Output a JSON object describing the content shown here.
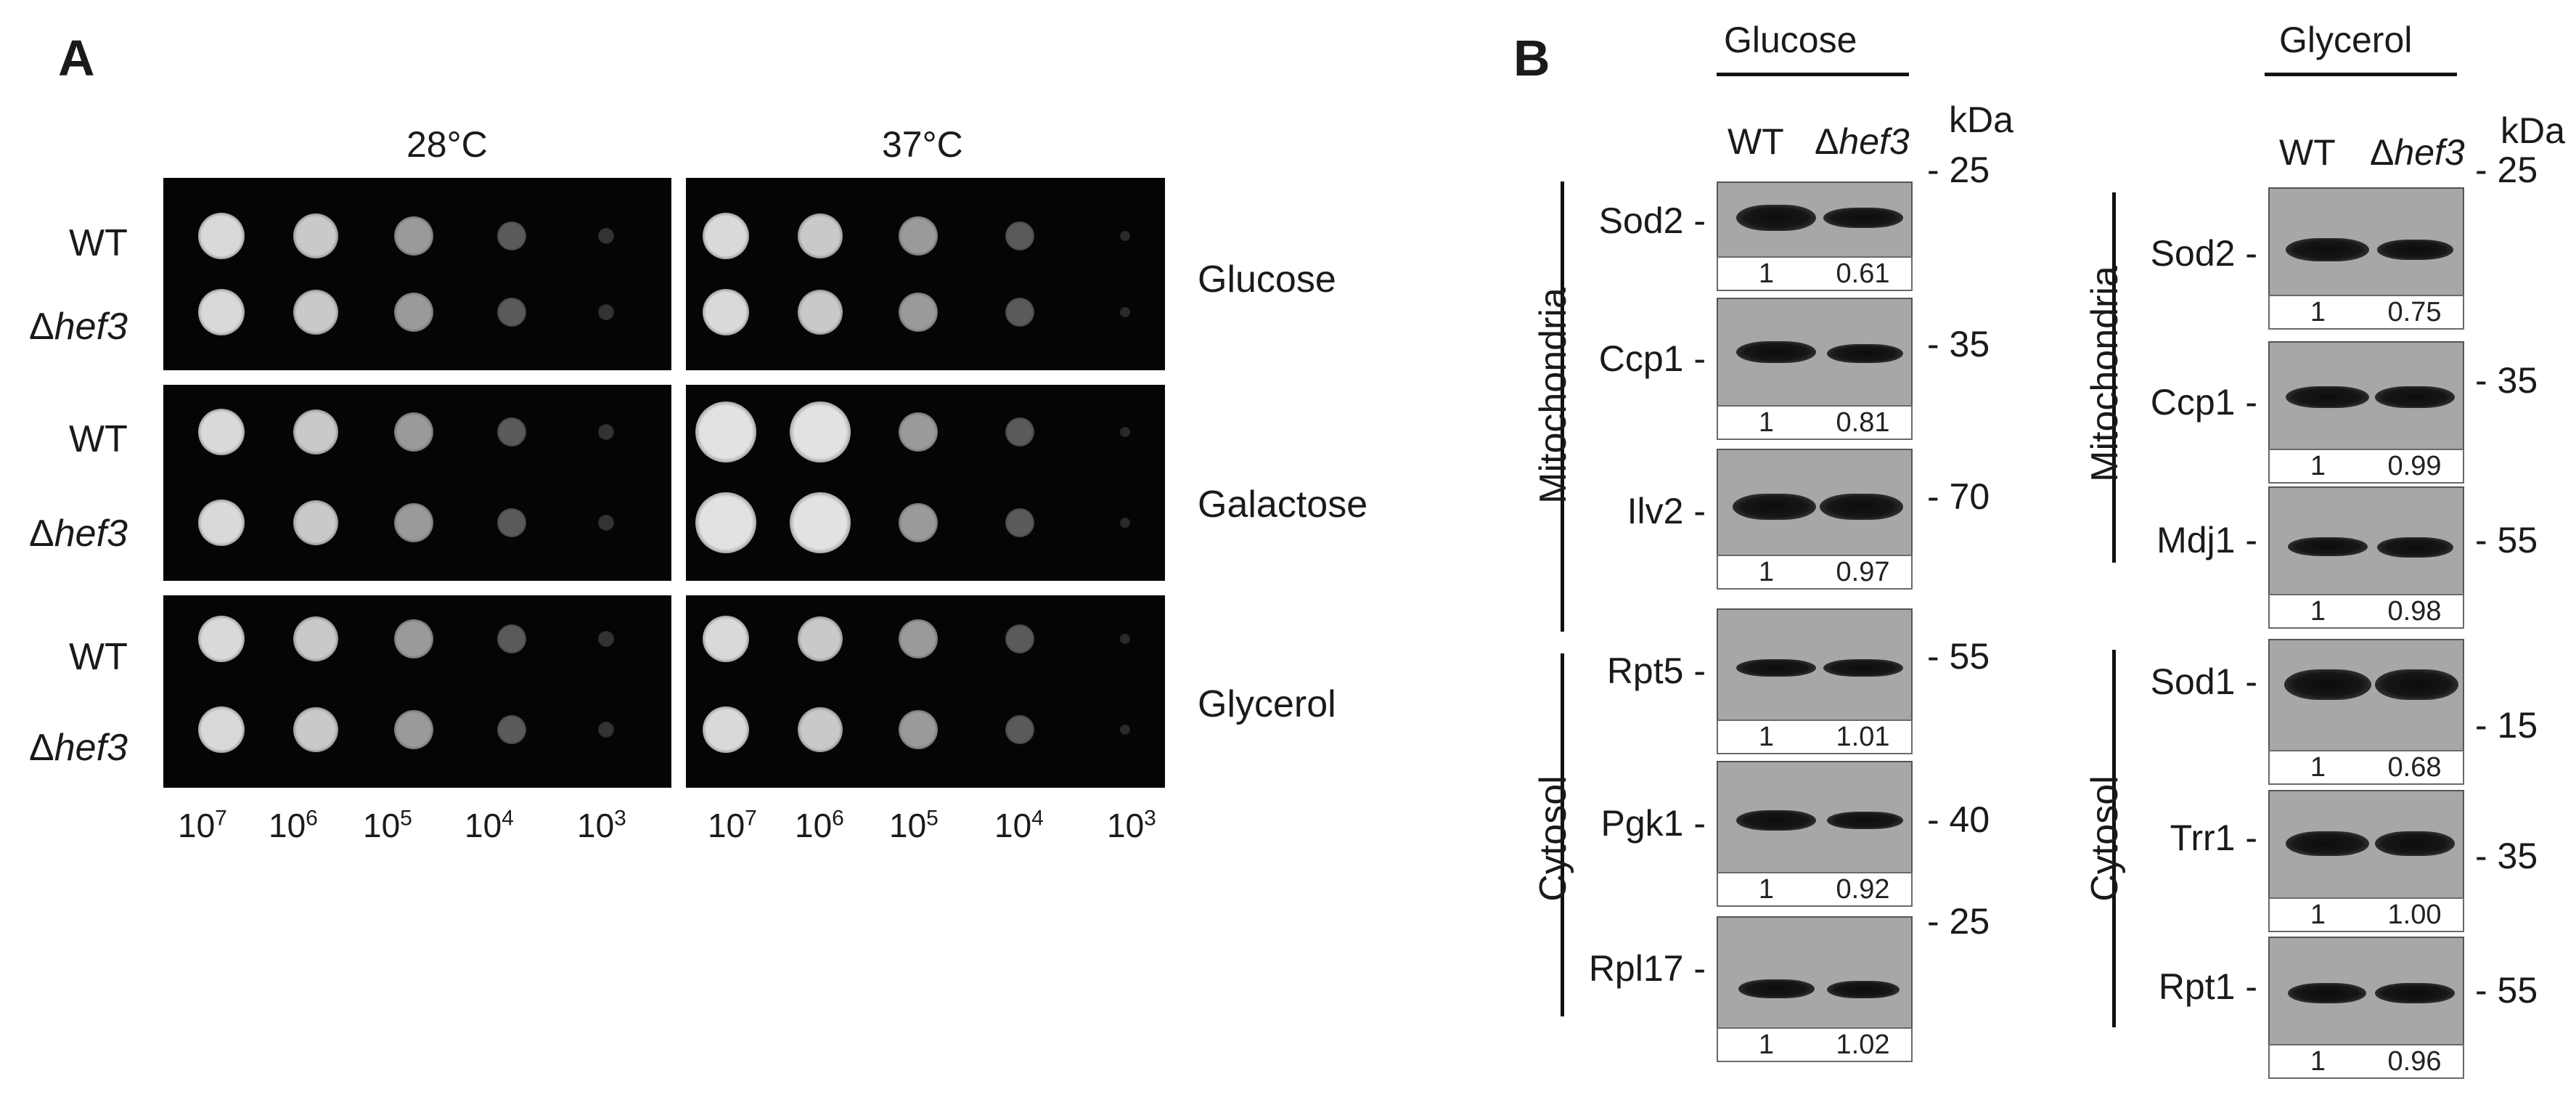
{
  "panel_a": {
    "letter": "A",
    "temperatures": [
      "28°C",
      "37°C"
    ],
    "media": [
      "Glucose",
      "Galactose",
      "Glycerol"
    ],
    "strain_wt": "WT",
    "strain_delta": "Δ",
    "strain_mut": "hef3",
    "dilutions": [
      {
        "base": "10",
        "exp": "7"
      },
      {
        "base": "10",
        "exp": "6"
      },
      {
        "base": "10",
        "exp": "5"
      },
      {
        "base": "10",
        "exp": "4"
      },
      {
        "base": "10",
        "exp": "3"
      }
    ]
  },
  "panel_b": {
    "letter": "B",
    "conditions": [
      "Glucose",
      "Glycerol"
    ],
    "col_wt": "WT",
    "col_delta": "Δ",
    "col_mut": "hef3",
    "kda_label": "kDa",
    "groups": [
      "Mitochondria",
      "Cytosol"
    ],
    "glucose_blots": [
      {
        "protein": "Sod2",
        "wt": "1",
        "mut": "0.61"
      },
      {
        "protein": "Ccp1",
        "wt": "1",
        "mut": "0.81"
      },
      {
        "protein": "Ilv2",
        "wt": "1",
        "mut": "0.97"
      },
      {
        "protein": "Rpt5",
        "wt": "1",
        "mut": "1.01"
      },
      {
        "protein": "Pgk1",
        "wt": "1",
        "mut": "0.92"
      },
      {
        "protein": "Rpl17",
        "wt": "1",
        "mut": "1.02"
      }
    ],
    "glucose_markers": [
      "- 25",
      "- 35",
      "- 70",
      "- 55",
      "- 40",
      "- 25"
    ],
    "glycerol_blots": [
      {
        "protein": "Sod2",
        "wt": "1",
        "mut": "0.75"
      },
      {
        "protein": "Ccp1",
        "wt": "1",
        "mut": "0.99"
      },
      {
        "protein": "Mdj1",
        "wt": "1",
        "mut": "0.98"
      },
      {
        "protein": "Sod1",
        "wt": "1",
        "mut": "0.68"
      },
      {
        "protein": "Trr1",
        "wt": "1",
        "mut": "1.00"
      },
      {
        "protein": "Rpt1",
        "wt": "1",
        "mut": "0.96"
      }
    ],
    "glycerol_markers": [
      "- 25",
      "- 35",
      "- 55",
      "- 15",
      "- 35",
      "- 55"
    ]
  }
}
